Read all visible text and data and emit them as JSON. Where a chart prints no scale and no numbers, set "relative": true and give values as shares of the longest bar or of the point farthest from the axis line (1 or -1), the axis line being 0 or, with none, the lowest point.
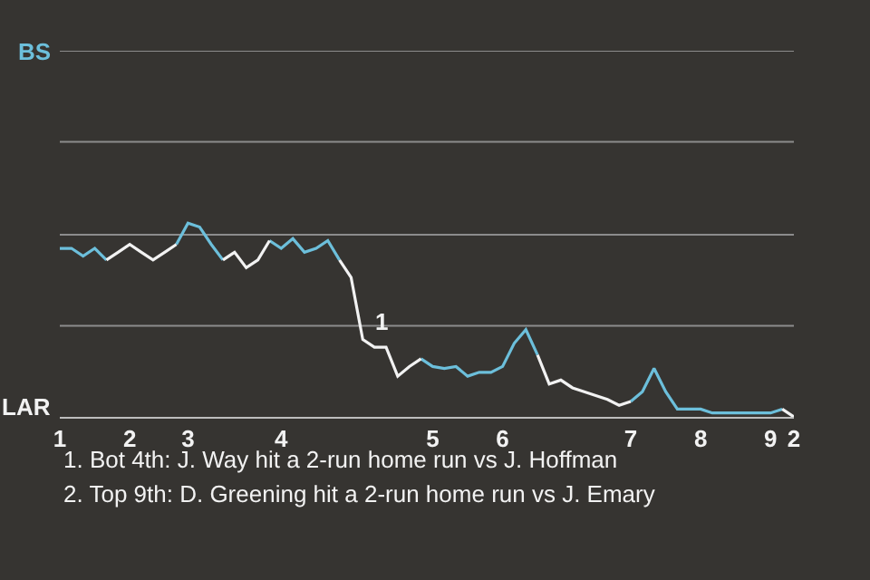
{
  "chart_data": {
    "type": "line",
    "relative": true,
    "categories": [
      "1",
      null,
      null,
      null,
      null,
      null,
      "2",
      null,
      null,
      null,
      null,
      "3",
      null,
      null,
      null,
      null,
      null,
      null,
      null,
      "4",
      null,
      null,
      null,
      null,
      null,
      null,
      null,
      null,
      null,
      null,
      null,
      null,
      "5",
      null,
      null,
      null,
      null,
      null,
      "6",
      null,
      null,
      null,
      null,
      null,
      null,
      null,
      null,
      null,
      null,
      "7",
      null,
      null,
      null,
      null,
      null,
      "8",
      null,
      null,
      null,
      null,
      null,
      "9",
      null,
      "2"
    ],
    "marker": "none",
    "line_style": "solid",
    "ref_lines": [
      {
        "axis": "y",
        "value": 0.47,
        "color": "#8c8c8c"
      },
      {
        "axis": "y",
        "value": 0.94,
        "color": "#8c8c8c"
      },
      {
        "axis": "y",
        "value": 1.42,
        "color": "#8c8c8c"
      },
      {
        "axis": "y",
        "value": 1.89,
        "color": "#8c8c8c"
      }
    ],
    "series": [
      {
        "color": "#6cbfdb",
        "values": [
          0.87,
          0.87,
          0.83,
          0.87,
          0.81,
          null,
          null,
          null,
          null,
          null,
          0.89,
          1,
          0.98,
          0.89,
          0.81,
          null,
          null,
          null,
          0.91,
          0.87,
          0.92,
          0.85,
          0.87,
          0.91,
          0.81,
          null,
          null,
          null,
          null,
          null,
          null,
          0.3,
          0.26,
          0.25,
          0.26,
          0.21,
          0.23,
          0.23,
          0.26,
          0.38,
          0.45,
          0.32,
          null,
          null,
          null,
          null,
          null,
          null,
          null,
          0.08,
          0.13,
          0.25,
          0.13,
          0.04,
          0.04,
          0.04,
          0.02,
          0.02,
          0.02,
          0.02,
          0.02,
          0.02,
          0.04,
          null
        ]
      },
      {
        "color": "#f2f2f2",
        "values": [
          null,
          null,
          null,
          null,
          0.81,
          0.85,
          0.89,
          0.85,
          0.81,
          0.85,
          0.89,
          null,
          null,
          null,
          0.81,
          0.85,
          0.77,
          0.81,
          0.91,
          null,
          null,
          null,
          null,
          null,
          0.81,
          0.72,
          0.4,
          0.36,
          0.36,
          0.21,
          0.26,
          0.3,
          null,
          null,
          null,
          null,
          null,
          null,
          null,
          null,
          null,
          0.32,
          0.17,
          0.19,
          0.15,
          0.13,
          0.11,
          0.09,
          0.06,
          0.08,
          null,
          null,
          null,
          null,
          null,
          null,
          null,
          null,
          null,
          null,
          null,
          null,
          0.04,
          0
        ]
      }
    ],
    "annotations": [
      "BS",
      "LAR",
      {
        "text": "1",
        "y": 0.4
      },
      "1. Bot 4th: J. Way hit a 2-run home run vs J. Hoffman",
      "2. Top 9th: D. Greening hit a 2-run home run vs J. Emary"
    ]
  }
}
